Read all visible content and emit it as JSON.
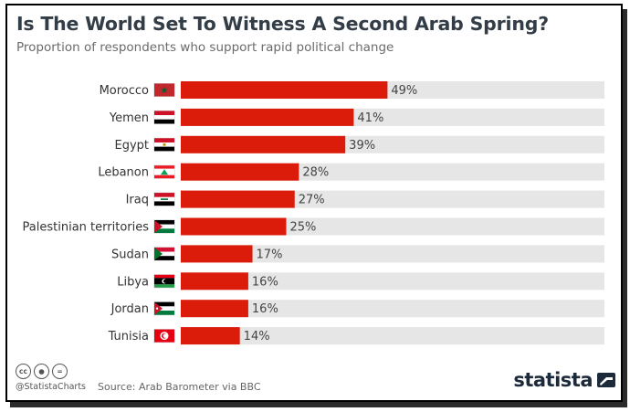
{
  "header": {
    "title": "Is The World Set To Witness A Second Arab Spring?",
    "subtitle": "Proportion of respondents who support rapid political change"
  },
  "chart_data": {
    "type": "bar",
    "orientation": "horizontal",
    "title": "Is The World Set To Witness A Second Arab Spring?",
    "subtitle": "Proportion of respondents who support rapid political change",
    "categories": [
      "Morocco",
      "Yemen",
      "Egypt",
      "Lebanon",
      "Iraq",
      "Palestinian territories",
      "Sudan",
      "Libya",
      "Jordan",
      "Tunisia"
    ],
    "values": [
      49,
      41,
      39,
      28,
      27,
      25,
      17,
      16,
      16,
      14
    ],
    "value_labels": [
      "49%",
      "41%",
      "39%",
      "28%",
      "27%",
      "25%",
      "17%",
      "16%",
      "16%",
      "14%"
    ],
    "xlim": [
      0,
      100
    ],
    "grid": false,
    "colors": {
      "bar": "#dc1c0a",
      "track": "#e6e6e6"
    },
    "flags": [
      "morocco-flag-icon",
      "yemen-flag-icon",
      "egypt-flag-icon",
      "lebanon-flag-icon",
      "iraq-flag-icon",
      "palestine-flag-icon",
      "sudan-flag-icon",
      "libya-flag-icon",
      "jordan-flag-icon",
      "tunisia-flag-icon"
    ]
  },
  "footer": {
    "handle": "@StatistaCharts",
    "source": "Source: Arab Barometer via BBC",
    "brand": "statista",
    "license_icons": [
      "cc-icon",
      "by-icon",
      "nd-icon"
    ]
  }
}
